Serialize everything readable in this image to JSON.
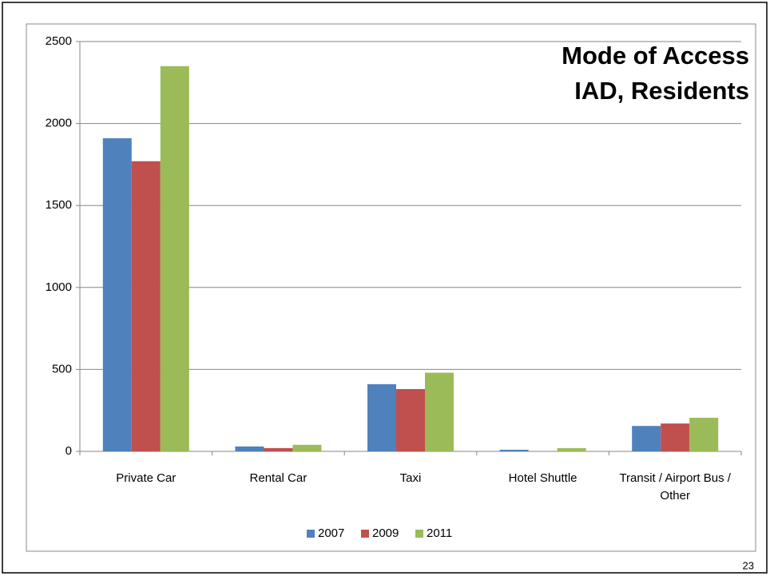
{
  "page_number": "23",
  "chart_data": {
    "type": "bar",
    "title": [
      "Mode of Access",
      "IAD, Residents"
    ],
    "categories": [
      "Private Car",
      "Rental Car",
      "Taxi",
      "Hotel Shuttle",
      "Transit / Airport Bus / Other"
    ],
    "series": [
      {
        "name": "2007",
        "color": "#4f81bd",
        "values": [
          1910,
          30,
          410,
          10,
          155
        ]
      },
      {
        "name": "2009",
        "color": "#c0504d",
        "values": [
          1770,
          20,
          380,
          0,
          170
        ]
      },
      {
        "name": "2011",
        "color": "#9bbb59",
        "values": [
          2350,
          40,
          480,
          20,
          205
        ]
      }
    ],
    "ylim": [
      0,
      2500
    ],
    "yticks": [
      0,
      500,
      1000,
      1500,
      2000,
      2500
    ],
    "grid": true,
    "legend": "bottom"
  }
}
